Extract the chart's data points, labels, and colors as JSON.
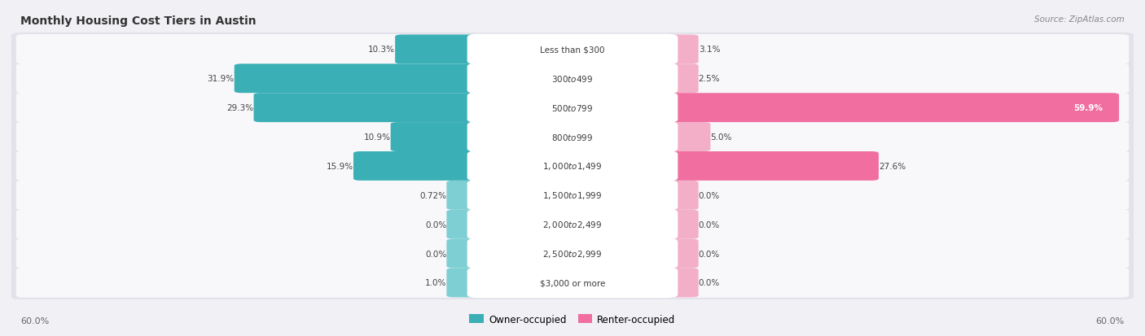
{
  "title": "Monthly Housing Cost Tiers in Austin",
  "source": "Source: ZipAtlas.com",
  "categories": [
    "Less than $300",
    "$300 to $499",
    "$500 to $799",
    "$800 to $999",
    "$1,000 to $1,499",
    "$1,500 to $1,999",
    "$2,000 to $2,499",
    "$2,500 to $2,999",
    "$3,000 or more"
  ],
  "owner_values": [
    10.3,
    31.9,
    29.3,
    10.9,
    15.9,
    0.72,
    0.0,
    0.0,
    1.0
  ],
  "renter_values": [
    3.1,
    2.5,
    59.9,
    5.0,
    27.6,
    0.0,
    0.0,
    0.0,
    0.0
  ],
  "owner_color_dark": "#3aafb5",
  "owner_color_light": "#7ecfd3",
  "renter_color_dark": "#f06fa0",
  "renter_color_light": "#f4afc8",
  "label_color_dark": "#555555",
  "label_color_white": "#ffffff",
  "axis_max": 60.0,
  "axis_label": "60.0%",
  "background_color": "#f0f0f5",
  "row_bg_color": "#e2e2ea",
  "row_inner_color": "#f8f8fb"
}
